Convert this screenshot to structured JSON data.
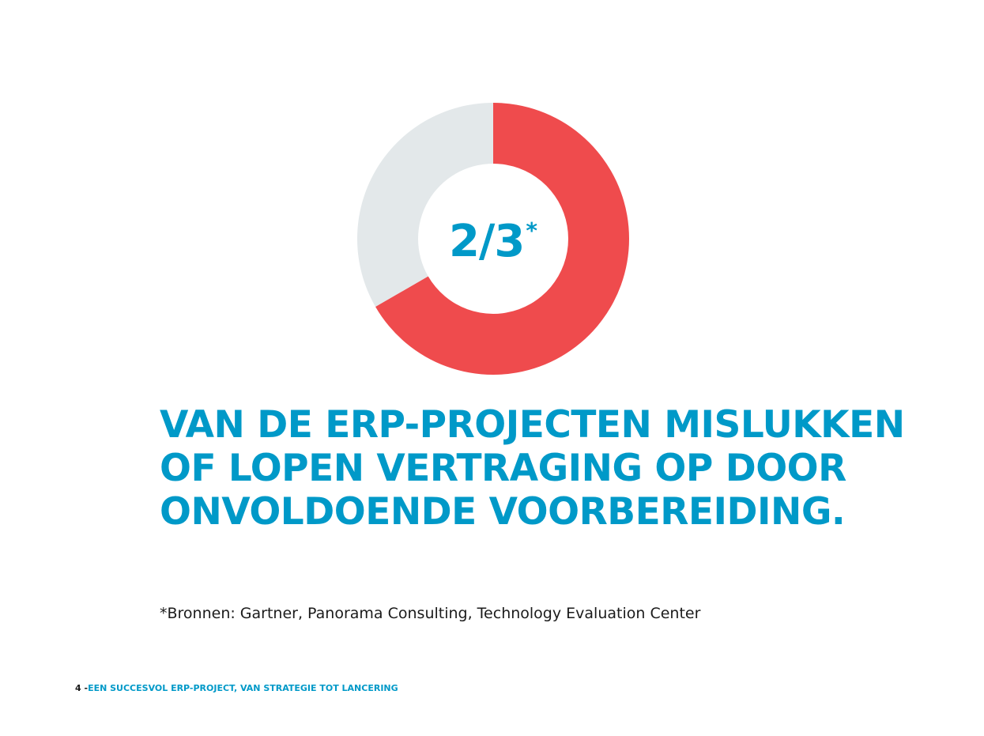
{
  "colors": {
    "accent_blue": "#0099C8",
    "donut_red": "#EF4B4D",
    "donut_grey": "#E3E8EA",
    "text_dark": "#1b1b1b"
  },
  "chart_data": {
    "type": "pie",
    "variant": "donut",
    "center_value": "2/3",
    "center_marker": "*",
    "slices": [
      {
        "value": 0.6667,
        "color": "#EF4B4D"
      },
      {
        "value": 0.3333,
        "color": "#E3E8EA"
      }
    ],
    "start_angle": "top",
    "direction": "clockwise",
    "legend": "none"
  },
  "headline": {
    "lines": [
      "VAN DE ERP-PROJECTEN MISLUKKEN",
      "OF LOPEN VERTRAGING OP DOOR",
      "ONVOLDOENDE VOORBEREIDING."
    ]
  },
  "source_note": "*Bronnen: Gartner, Panorama Consulting, Technology Evaluation Center",
  "footer": {
    "page_number": "4",
    "separator": " -",
    "title": "EEN SUCCESVOL ERP-PROJECT, VAN STRATEGIE TOT LANCERING"
  }
}
